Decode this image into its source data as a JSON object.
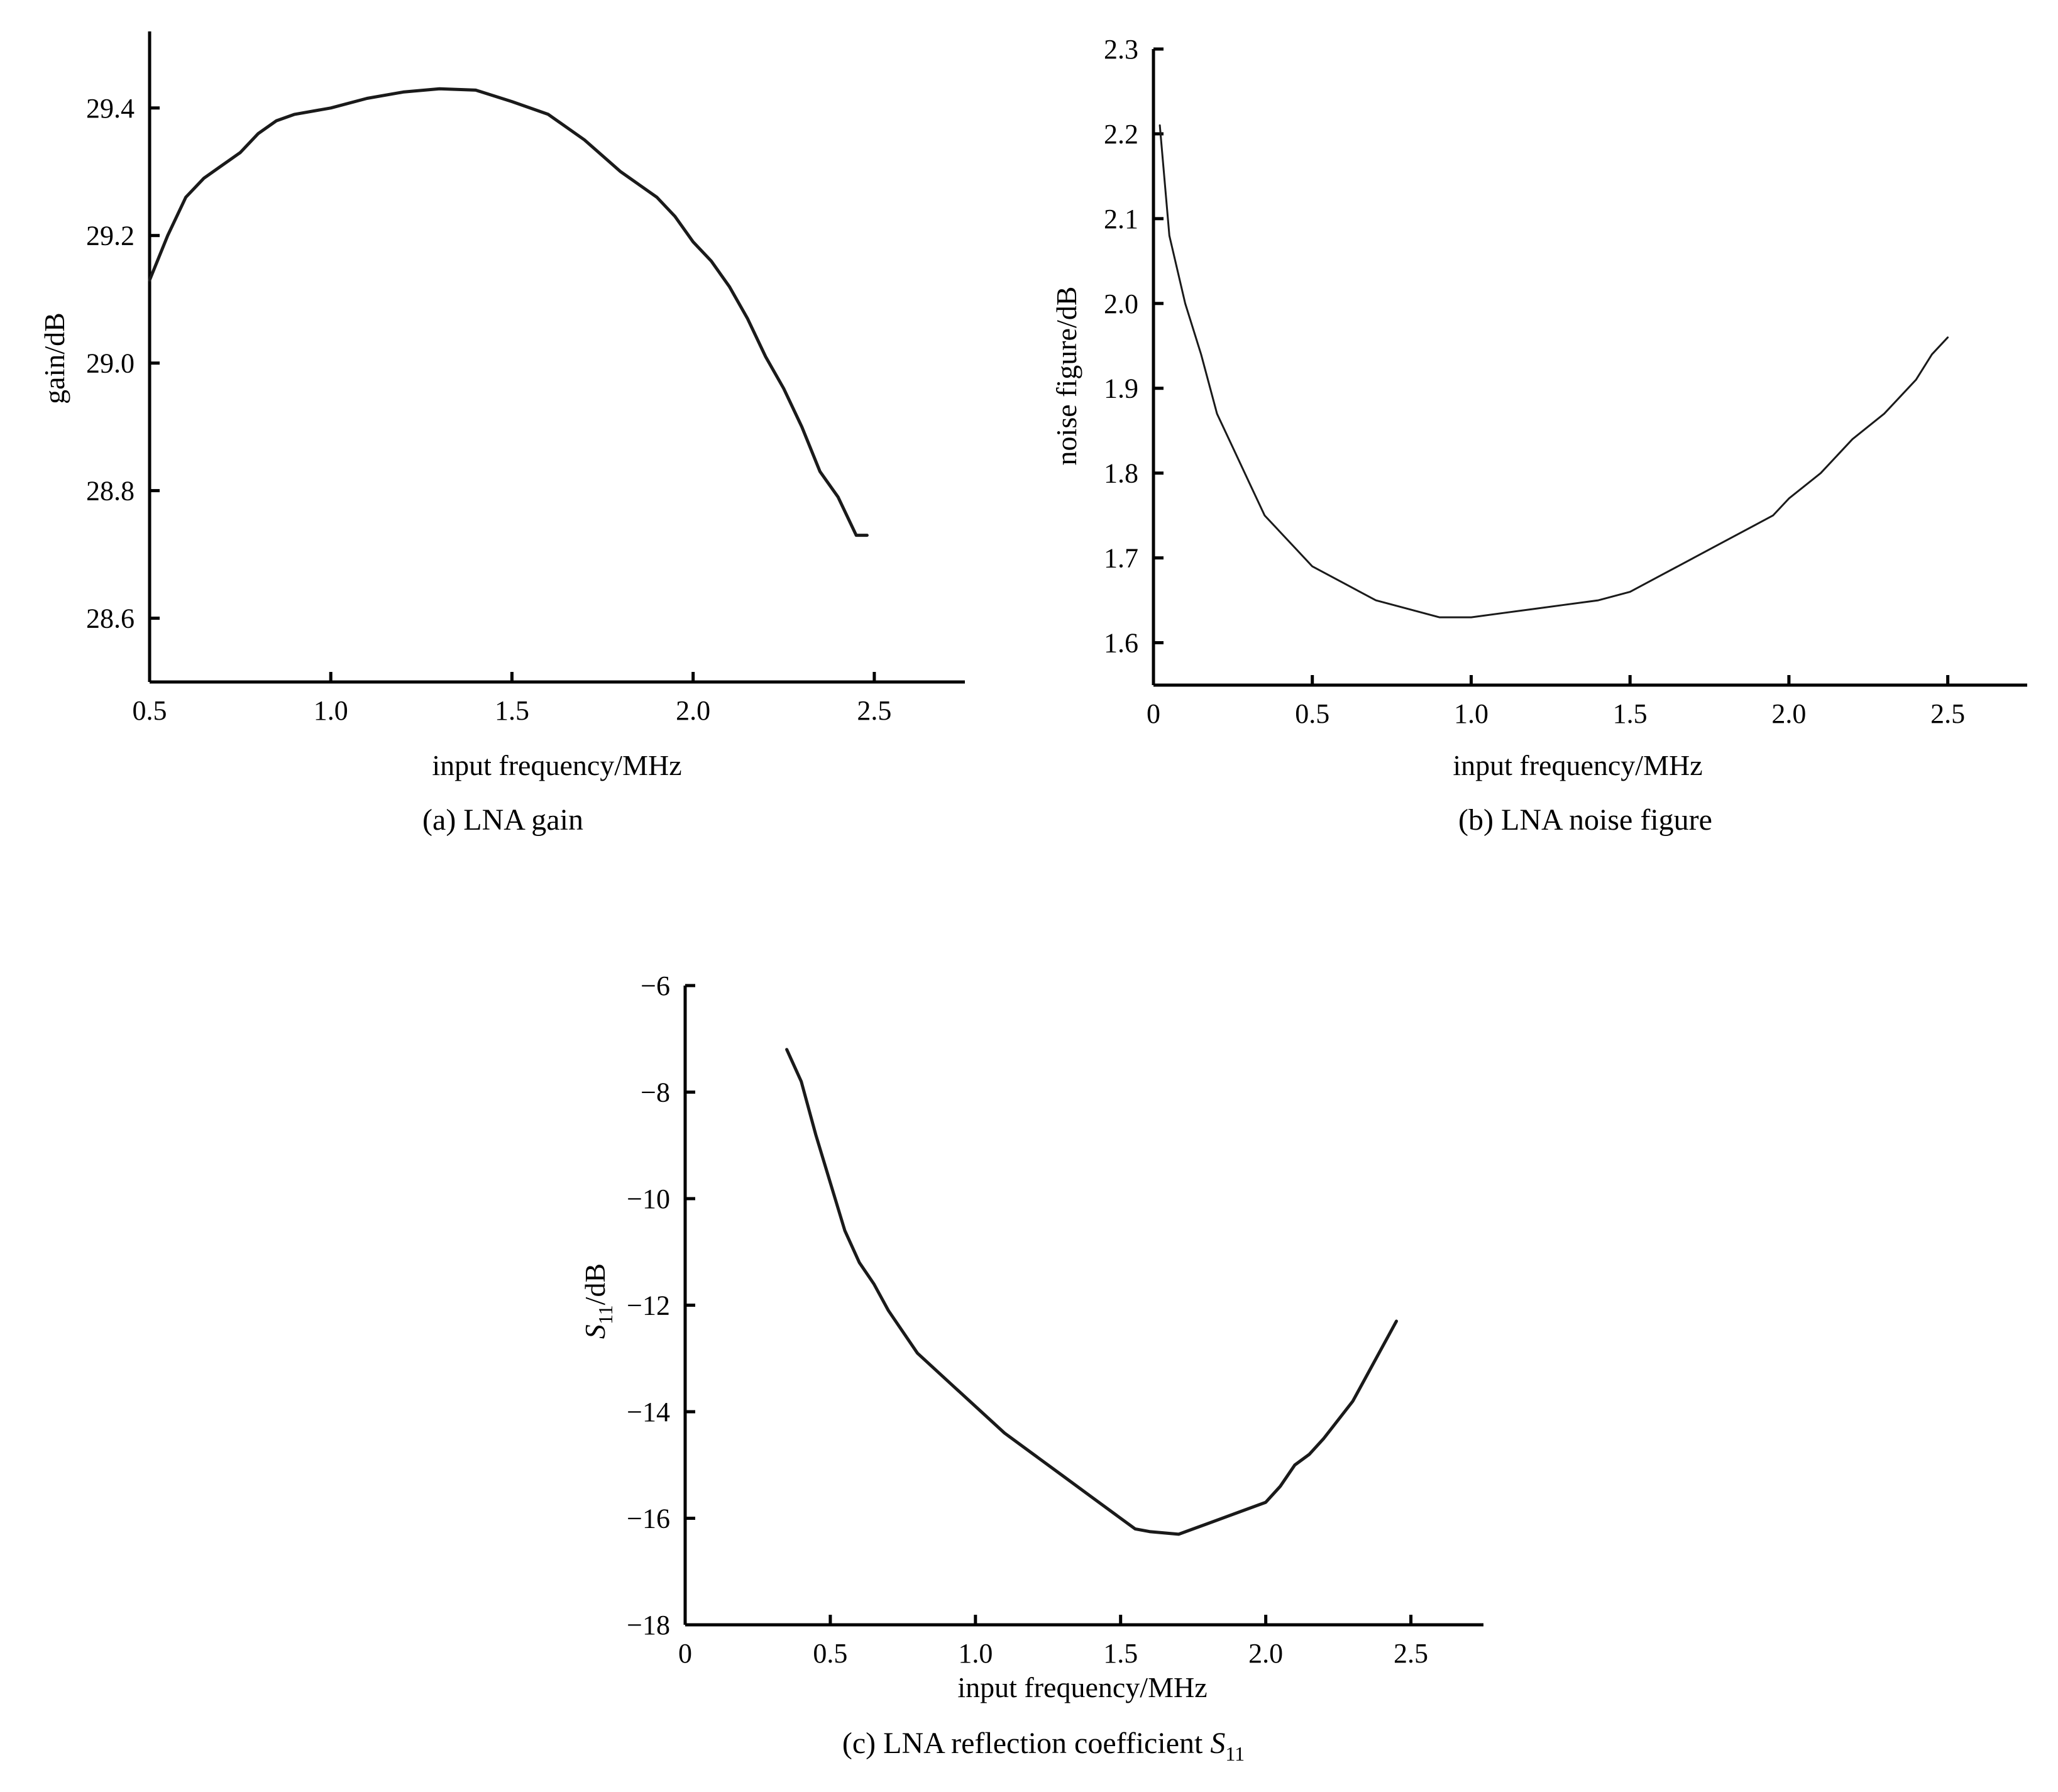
{
  "chart_data": [
    {
      "type": "line",
      "caption": "(a) LNA gain",
      "xlabel": "input frequency/MHz",
      "ylabel": "gain/dB",
      "xlim": [
        0.5,
        2.75
      ],
      "ylim": [
        28.5,
        29.52
      ],
      "xticks": [
        0.5,
        1.0,
        1.5,
        2.0,
        2.5
      ],
      "xtick_labels": [
        "0.5",
        "1.0",
        "1.5",
        "2.0",
        "2.5"
      ],
      "yticks": [
        28.6,
        28.8,
        29.0,
        29.2,
        29.4
      ],
      "ytick_labels": [
        "28.6",
        "28.8",
        "29.0",
        "29.2",
        "29.4"
      ],
      "grid": false,
      "series": [
        {
          "color": "#1a1a1a",
          "x": [
            0.5,
            0.55,
            0.6,
            0.65,
            0.7,
            0.75,
            0.8,
            0.85,
            0.9,
            1.0,
            1.1,
            1.2,
            1.3,
            1.4,
            1.5,
            1.6,
            1.7,
            1.8,
            1.85,
            1.9,
            1.95,
            2.0,
            2.05,
            2.1,
            2.15,
            2.2,
            2.25,
            2.3,
            2.35,
            2.4,
            2.45,
            2.48
          ],
          "y": [
            29.13,
            29.2,
            29.26,
            29.29,
            29.31,
            29.33,
            29.36,
            29.38,
            29.39,
            29.4,
            29.415,
            29.425,
            29.43,
            29.428,
            29.41,
            29.39,
            29.35,
            29.3,
            29.28,
            29.26,
            29.23,
            29.19,
            29.16,
            29.12,
            29.07,
            29.01,
            28.96,
            28.9,
            28.83,
            28.79,
            28.73,
            28.73
          ]
        }
      ]
    },
    {
      "type": "line",
      "caption": "(b) LNA noise figure",
      "xlabel": "input frequency/MHz",
      "ylabel": "noise figure/dB",
      "xlim": [
        0,
        2.75
      ],
      "ylim": [
        1.55,
        2.3
      ],
      "xticks": [
        0,
        0.5,
        1.0,
        1.5,
        2.0,
        2.5
      ],
      "xtick_labels": [
        "0",
        "0.5",
        "1.0",
        "1.5",
        "2.0",
        "2.5"
      ],
      "yticks": [
        1.6,
        1.7,
        1.8,
        1.9,
        2.0,
        2.1,
        2.2,
        2.3
      ],
      "ytick_labels": [
        "1.6",
        "1.7",
        "1.8",
        "1.9",
        "2.0",
        "2.1",
        "2.2",
        "2.3"
      ],
      "grid": false,
      "series": [
        {
          "color": "#333333",
          "x": [
            0.02,
            0.05,
            0.1,
            0.15,
            0.2,
            0.25,
            0.3,
            0.35,
            0.4,
            0.45,
            0.5,
            0.55,
            0.6,
            0.7,
            0.8,
            0.9,
            1.0,
            1.1,
            1.2,
            1.3,
            1.4,
            1.5,
            1.6,
            1.7,
            1.8,
            1.9,
            1.95,
            2.0,
            2.1,
            2.2,
            2.3,
            2.35,
            2.4,
            2.45,
            2.5
          ],
          "y": [
            2.21,
            2.08,
            2.0,
            1.94,
            1.87,
            1.83,
            1.79,
            1.75,
            1.73,
            1.71,
            1.69,
            1.68,
            1.67,
            1.65,
            1.64,
            1.63,
            1.63,
            1.635,
            1.64,
            1.645,
            1.65,
            1.66,
            1.68,
            1.7,
            1.72,
            1.74,
            1.75,
            1.77,
            1.8,
            1.84,
            1.87,
            1.89,
            1.91,
            1.94,
            1.96
          ]
        }
      ]
    },
    {
      "type": "line",
      "caption_main": "(c) LNA reflection coefficient ",
      "caption_symbol": "S",
      "caption_subscript": "11",
      "xlabel": "input frequency/MHz",
      "ylabel_symbol": "S",
      "ylabel_subscript": "11",
      "ylabel_unit": "/dB",
      "xlim": [
        0,
        2.75
      ],
      "ylim": [
        -18,
        -6
      ],
      "xticks": [
        0,
        0.5,
        1.0,
        1.5,
        2.0,
        2.5
      ],
      "xtick_labels": [
        "0",
        "0.5",
        "1.0",
        "1.5",
        "2.0",
        "2.5"
      ],
      "yticks": [
        -18,
        -16,
        -14,
        -12,
        -10,
        -8,
        -6
      ],
      "ytick_labels": [
        "−18",
        "−16",
        "−14",
        "−12",
        "−10",
        "−8",
        "−6"
      ],
      "grid": false,
      "series": [
        {
          "color": "#1a1a1a",
          "x": [
            0.35,
            0.4,
            0.45,
            0.5,
            0.55,
            0.6,
            0.65,
            0.7,
            0.8,
            0.9,
            1.0,
            1.1,
            1.2,
            1.3,
            1.4,
            1.5,
            1.55,
            1.6,
            1.7,
            1.8,
            1.9,
            2.0,
            2.05,
            2.1,
            2.15,
            2.2,
            2.3,
            2.4,
            2.45
          ],
          "y": [
            -7.2,
            -7.8,
            -8.8,
            -9.7,
            -10.6,
            -11.2,
            -11.6,
            -12.1,
            -12.9,
            -13.4,
            -13.9,
            -14.4,
            -14.8,
            -15.2,
            -15.6,
            -16.0,
            -16.2,
            -16.25,
            -16.3,
            -16.1,
            -15.9,
            -15.7,
            -15.4,
            -15.0,
            -14.8,
            -14.5,
            -13.8,
            -12.8,
            -12.3
          ]
        }
      ]
    }
  ]
}
